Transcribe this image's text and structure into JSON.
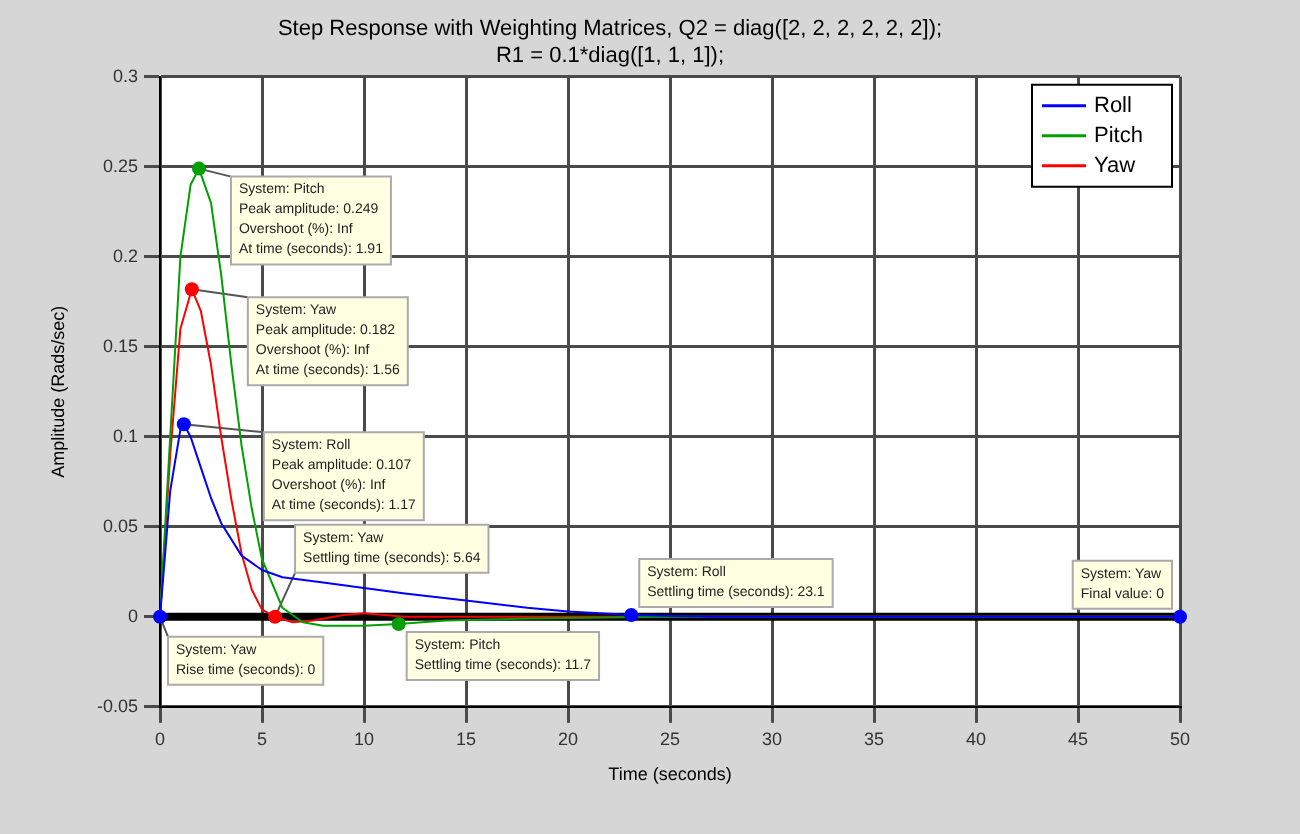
{
  "chart_data": {
    "type": "line",
    "title": "Step Response with Weighting Matrices, Q2 = diag([2, 2, 2, 2, 2, 2]);\nR1 = 0.1*diag([1, 1, 1]);",
    "xlabel": "Time (seconds)",
    "ylabel": "Amplitude (Rads/sec)",
    "xlim": [
      0,
      50
    ],
    "xticks": [
      0,
      5,
      10,
      15,
      20,
      25,
      30,
      35,
      40,
      45,
      50
    ],
    "ylim": [
      -0.05,
      0.3
    ],
    "yticks": [
      -0.05,
      0,
      0.05,
      0.1,
      0.15,
      0.2,
      0.25,
      0.3
    ],
    "grid": true,
    "legend": "top right",
    "marker": "none",
    "line_style": "solid",
    "series": [
      {
        "name": "Roll",
        "color": "#0000ff",
        "x": [
          0,
          0.5,
          1,
          1.17,
          1.5,
          2,
          2.5,
          3,
          4,
          5,
          6,
          8,
          10,
          12,
          15,
          18,
          20,
          23.1,
          27,
          50
        ],
        "values": [
          0,
          0.07,
          0.104,
          0.107,
          0.1,
          0.083,
          0.066,
          0.052,
          0.034,
          0.026,
          0.022,
          0.019,
          0.016,
          0.013,
          0.009,
          0.005,
          0.003,
          0.001,
          0,
          0
        ]
      },
      {
        "name": "Pitch",
        "color": "#00a000",
        "x": [
          0,
          0.5,
          1,
          1.5,
          1.91,
          2.5,
          3,
          3.5,
          4,
          4.5,
          5,
          6,
          7,
          8,
          9,
          10,
          11.7,
          14,
          18,
          25,
          50
        ],
        "values": [
          0,
          0.1,
          0.2,
          0.24,
          0.249,
          0.23,
          0.19,
          0.14,
          0.095,
          0.06,
          0.032,
          0.005,
          -0.003,
          -0.005,
          -0.005,
          -0.005,
          -0.004,
          -0.002,
          -0.001,
          0,
          0
        ]
      },
      {
        "name": "Yaw",
        "color": "#ff0000",
        "x": [
          0,
          0.5,
          1,
          1.56,
          2,
          2.5,
          3,
          3.5,
          4,
          4.5,
          5,
          5.64,
          6.5,
          7.5,
          9,
          10,
          12,
          50
        ],
        "values": [
          0,
          0.09,
          0.16,
          0.182,
          0.17,
          0.14,
          0.1,
          0.065,
          0.035,
          0.015,
          0.004,
          0,
          -0.003,
          -0.002,
          0.001,
          0.002,
          0,
          0
        ]
      }
    ],
    "ref_lines": [
      {
        "axis": "y",
        "value": 0,
        "color": "#000000"
      }
    ],
    "annotations": [
      {
        "text": "System: Pitch\nPeak amplitude: 0.249\nOvershoot (%): Inf\nAt time (seconds): 1.91",
        "x": 1.91,
        "y": 0.249
      },
      {
        "text": "System: Yaw\nPeak amplitude: 0.182\nOvershoot (%): Inf\nAt time (seconds): 1.56",
        "x": 1.56,
        "y": 0.182
      },
      {
        "text": "System: Roll\nPeak amplitude: 0.107\nOvershoot (%): Inf\nAt time (seconds): 1.17",
        "x": 1.17,
        "y": 0.107
      },
      {
        "text": "System: Yaw\nRise time (seconds): 0",
        "x": 0,
        "y": 0
      },
      {
        "text": "System: Yaw\nSettling time (seconds): 5.64",
        "x": 5.64,
        "y": 0
      },
      {
        "text": "System: Pitch\nSettling time (seconds): 11.7",
        "x": 11.7,
        "y": -0.004
      },
      {
        "text": "System: Roll\nSettling time (seconds): 23.1",
        "x": 23.1,
        "y": 0.001
      },
      {
        "text": "System: Yaw\nFinal value: 0",
        "x": 50,
        "y": 0
      }
    ]
  }
}
